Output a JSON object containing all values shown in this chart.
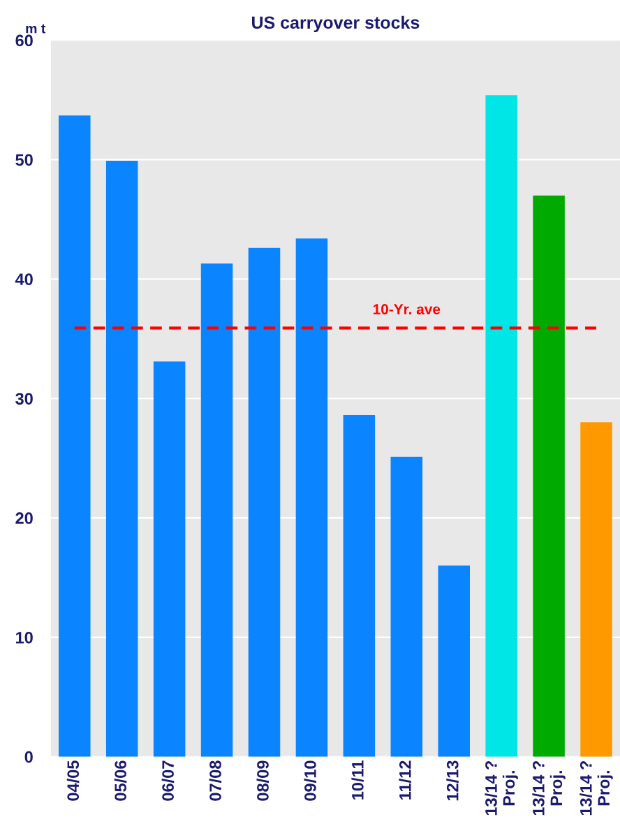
{
  "chart_data": {
    "type": "bar",
    "title": "US carryover stocks",
    "ylabel": "m t",
    "categories": [
      "04/05",
      "05/06",
      "06/07",
      "07/08",
      "08/09",
      "09/10",
      "10/11",
      "11/12",
      "12/13",
      "13/14 ?\nProj.",
      "13/14 ?\nProj.",
      "13/14 ?\nProj."
    ],
    "values": [
      53.7,
      49.9,
      33.1,
      41.3,
      42.6,
      43.4,
      28.6,
      25.1,
      16.0,
      55.4,
      47.0,
      28.0
    ],
    "colors": [
      "#0a84ff",
      "#0a84ff",
      "#0a84ff",
      "#0a84ff",
      "#0a84ff",
      "#0a84ff",
      "#0a84ff",
      "#0a84ff",
      "#0a84ff",
      "#00e5e5",
      "#00aa00",
      "#ff9900"
    ],
    "ylim": [
      0,
      60
    ],
    "yticks": [
      0,
      10,
      20,
      30,
      40,
      50,
      60
    ],
    "grid": "y",
    "ref_lines": [
      {
        "axis": "y",
        "value": 35.9,
        "label": "10-Yr. ave",
        "color": "#ff0000",
        "line_style": "dashed"
      }
    ]
  }
}
